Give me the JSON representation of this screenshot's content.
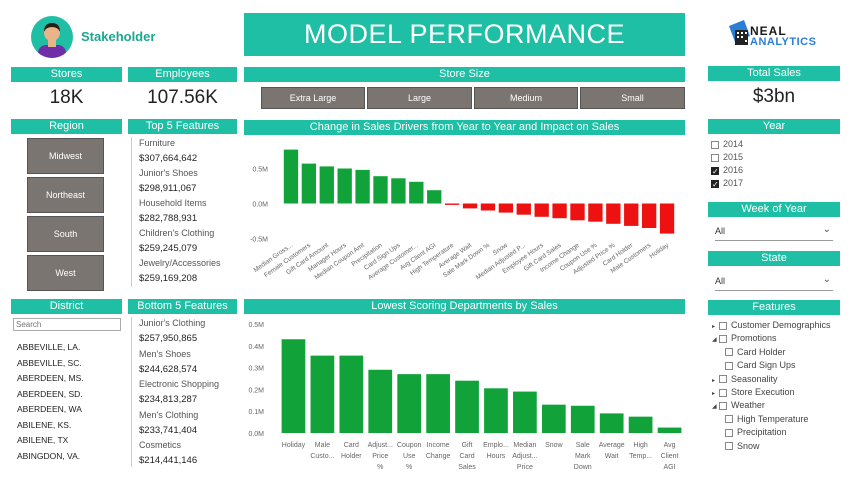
{
  "stakeholder": {
    "label": "Stakeholder"
  },
  "title": "MODEL PERFORMANCE",
  "logo": {
    "line1": "NEAL",
    "line2": "ANALYTICS"
  },
  "kpis": {
    "stores": {
      "label": "Stores",
      "value": "18K"
    },
    "employees": {
      "label": "Employees",
      "value": "107.56K"
    },
    "total_sales": {
      "label": "Total Sales",
      "value": "$3bn"
    }
  },
  "store_size": {
    "label": "Store Size",
    "options": [
      "Extra Large",
      "Large",
      "Medium",
      "Small"
    ]
  },
  "region": {
    "label": "Region",
    "options": [
      "Midwest",
      "Northeast",
      "South",
      "West"
    ]
  },
  "top5": {
    "label": "Top 5 Features",
    "items": [
      {
        "name": "Furniture",
        "value": "$307,664,642"
      },
      {
        "name": "Junior's Shoes",
        "value": "$298,911,067"
      },
      {
        "name": "Household Items",
        "value": "$282,788,931"
      },
      {
        "name": "Children's Clothing",
        "value": "$259,245,079"
      },
      {
        "name": "Jewelry/Accessories",
        "value": "$259,169,208"
      }
    ]
  },
  "bottom5": {
    "label": "Bottom 5 Features",
    "items": [
      {
        "name": "Junior's Clothing",
        "value": "$257,950,865"
      },
      {
        "name": "Men's Shoes",
        "value": "$244,628,574"
      },
      {
        "name": "Electronic Shopping",
        "value": "$234,813,287"
      },
      {
        "name": "Men's Clothing",
        "value": "$233,741,404"
      },
      {
        "name": "Cosmetics",
        "value": "$214,441,146"
      }
    ]
  },
  "district": {
    "label": "District",
    "search_placeholder": "Search",
    "items": [
      "ABBEVILLE, LA.",
      "ABBEVILLE, SC.",
      "ABERDEEN, MS.",
      "ABERDEEN, SD.",
      "ABERDEEN, WA",
      "ABILENE, KS.",
      "ABILENE, TX",
      "ABINGDON, VA."
    ]
  },
  "year": {
    "label": "Year",
    "options": [
      {
        "label": "2014",
        "checked": false
      },
      {
        "label": "2015",
        "checked": false
      },
      {
        "label": "2016",
        "checked": true
      },
      {
        "label": "2017",
        "checked": true
      }
    ]
  },
  "week_of_year": {
    "label": "Week of Year",
    "value": "All"
  },
  "state": {
    "label": "State",
    "value": "All"
  },
  "features": {
    "label": "Features",
    "tree": [
      {
        "label": "Customer Demographics",
        "level": 0,
        "expander": "right"
      },
      {
        "label": "Promotions",
        "level": 0,
        "expander": "down"
      },
      {
        "label": "Card Holder",
        "level": 1
      },
      {
        "label": "Card Sign Ups",
        "level": 1
      },
      {
        "label": "Seasonality",
        "level": 0,
        "expander": "right"
      },
      {
        "label": "Store Execution",
        "level": 0,
        "expander": "right"
      },
      {
        "label": "Weather",
        "level": 0,
        "expander": "down"
      },
      {
        "label": "High Temperature",
        "level": 1
      },
      {
        "label": "Precipitation",
        "level": 1
      },
      {
        "label": "Snow",
        "level": 1
      }
    ]
  },
  "chart_data": [
    {
      "type": "bar",
      "title": "Change in Sales Drivers from Year to Year and Impact on Sales",
      "categories": [
        "Median Gross...",
        "Female Customers",
        "Gift Card Amount",
        "Manager Hours",
        "Median Coupon Amt",
        "Precipitation",
        "Card Sign Ups",
        "Average Customer...",
        "Avg Client AGI",
        "High Temperature",
        "Average Wait",
        "Sale Mark Down %",
        "Snow",
        "Median Adjusted P...",
        "Employee Hours",
        "Gift Card Sales",
        "Income Change",
        "Coupon Use %",
        "Adjusted Price %",
        "Card Holder",
        "Male Customers",
        "Holiday"
      ],
      "values": [
        0.77,
        0.57,
        0.53,
        0.5,
        0.48,
        0.39,
        0.36,
        0.31,
        0.19,
        -0.02,
        -0.07,
        -0.1,
        -0.13,
        -0.16,
        -0.19,
        -0.21,
        -0.24,
        -0.26,
        -0.29,
        -0.32,
        -0.35,
        -0.43
      ],
      "tick_labels": [
        "0.5M",
        "0.0M",
        "-0.5M"
      ],
      "tick_values": [
        0.5,
        0.0,
        -0.5
      ],
      "ylim": [
        -0.55,
        0.85
      ],
      "colors": {
        "positive": "#11a33a",
        "negative": "#ee1111"
      }
    },
    {
      "type": "bar",
      "title": "Lowest Scoring Departments by Sales",
      "categories": [
        "Holiday",
        "Male Custo...",
        "Card Holder",
        "Adjust... Price %",
        "Coupon Use %",
        "Income Change",
        "Gift Card Sales",
        "Emplo... Hours",
        "Median Adjust... Price ...",
        "Snow",
        "Sale Mark Down ...",
        "Average Wait",
        "High Temp...",
        "Avg Client AGI"
      ],
      "values": [
        0.43,
        0.355,
        0.355,
        0.29,
        0.27,
        0.27,
        0.24,
        0.205,
        0.19,
        0.13,
        0.125,
        0.09,
        0.075,
        0.025
      ],
      "tick_labels": [
        "0.5M",
        "0.4M",
        "0.3M",
        "0.2M",
        "0.1M",
        "0.0M"
      ],
      "tick_values": [
        0.5,
        0.4,
        0.3,
        0.2,
        0.1,
        0.0
      ],
      "ylim": [
        0,
        0.5
      ],
      "colors": {
        "bar": "#11a33a"
      }
    }
  ]
}
